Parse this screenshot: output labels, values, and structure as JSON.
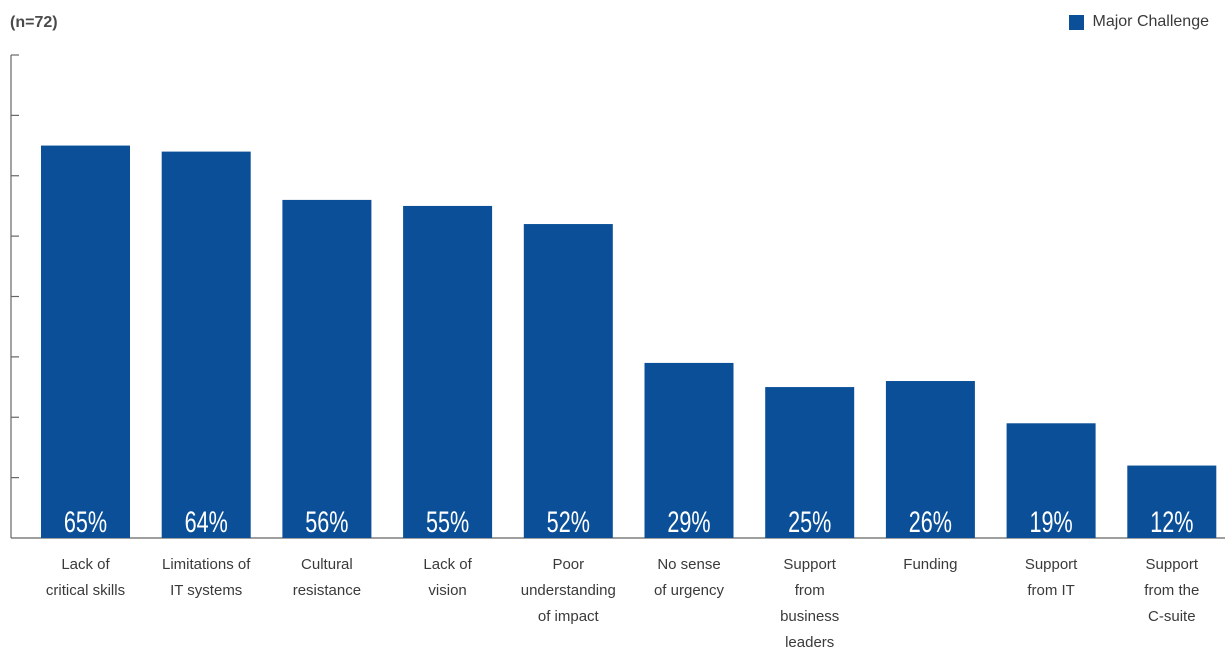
{
  "header": {
    "sample_size": "(n=72)"
  },
  "legend": {
    "label": "Major Challenge",
    "color": "#0a4f97"
  },
  "chart_data": {
    "type": "bar",
    "title": "",
    "xlabel": "",
    "ylabel": "",
    "ylim": [
      0,
      80
    ],
    "grid": false,
    "legend_position": "top-right",
    "categories": [
      [
        "Lack of",
        "critical skills"
      ],
      [
        "Limitations of",
        "IT systems"
      ],
      [
        "Cultural",
        "resistance"
      ],
      [
        "Lack of",
        "vision"
      ],
      [
        "Poor",
        "understanding",
        "of impact"
      ],
      [
        "No sense",
        "of urgency"
      ],
      [
        "Support",
        "from",
        "business",
        "leaders"
      ],
      [
        "Funding"
      ],
      [
        "Support",
        "from IT"
      ],
      [
        "Support",
        "from the",
        "C-suite"
      ]
    ],
    "series": [
      {
        "name": "Major Challenge",
        "color": "#0a4f97",
        "values": [
          65,
          64,
          56,
          55,
          52,
          29,
          25,
          26,
          19,
          12
        ],
        "labels": [
          "65%",
          "64%",
          "56%",
          "55%",
          "52%",
          "29%",
          "25%",
          "26%",
          "19%",
          "12%"
        ]
      }
    ]
  }
}
